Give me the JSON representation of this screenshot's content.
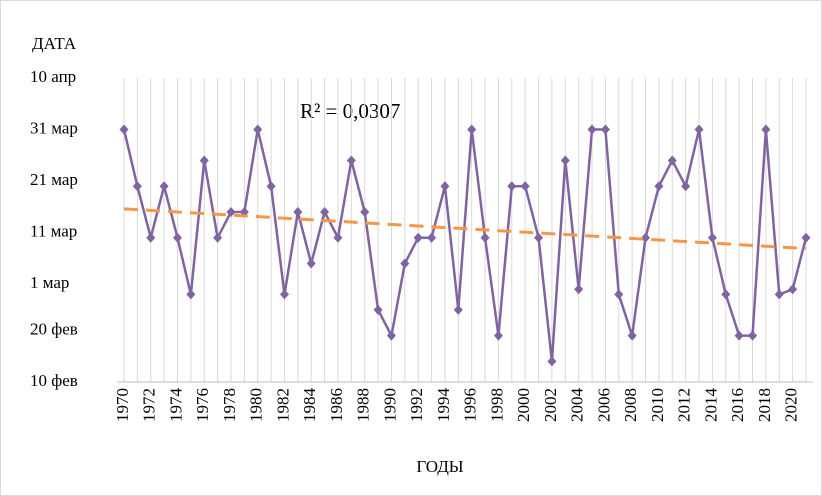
{
  "chart_data": {
    "type": "line",
    "ylabel": "ДАТА",
    "xlabel": "ГОДЫ",
    "annotation": "R² = 0,0307",
    "x": [
      1970,
      1971,
      1972,
      1973,
      1974,
      1975,
      1976,
      1977,
      1978,
      1979,
      1980,
      1981,
      1982,
      1983,
      1984,
      1985,
      1986,
      1987,
      1988,
      1989,
      1990,
      1991,
      1992,
      1993,
      1994,
      1995,
      1996,
      1997,
      1998,
      1999,
      2000,
      2001,
      2002,
      2003,
      2004,
      2005,
      2006,
      2007,
      2008,
      2009,
      2010,
      2011,
      2012,
      2013,
      2014,
      2015,
      2016,
      2017,
      2018,
      2019,
      2020,
      2021
    ],
    "series": [
      {
        "color": "#8064a2",
        "values": [
          90,
          79,
          69,
          79,
          69,
          58,
          84,
          69,
          74,
          74,
          90,
          79,
          58,
          74,
          64,
          74,
          69,
          84,
          74,
          55,
          50,
          64,
          69,
          69,
          79,
          55,
          90,
          69,
          50,
          79,
          79,
          69,
          45,
          84,
          59,
          90,
          90,
          58,
          50,
          69,
          79,
          84,
          79,
          90,
          69,
          58,
          50,
          50,
          90,
          58,
          59,
          69
        ]
      }
    ],
    "trend": {
      "color": "#f79646",
      "x": [
        1970,
        2021
      ],
      "values": [
        74.6,
        66.9
      ]
    },
    "xlim": [
      1970,
      2021
    ],
    "xticks": [
      1970,
      1972,
      1974,
      1976,
      1978,
      1980,
      1982,
      1984,
      1986,
      1988,
      1990,
      1992,
      1994,
      1996,
      1998,
      2000,
      2002,
      2004,
      2006,
      2008,
      2010,
      2012,
      2014,
      2016,
      2018,
      2020
    ],
    "ylim": [
      41,
      100
    ],
    "yticks": [
      {
        "value": 41,
        "label": "10 фев"
      },
      {
        "value": 51,
        "label": "20 фев"
      },
      {
        "value": 60,
        "label": "1 мар"
      },
      {
        "value": 70,
        "label": "11 мар"
      },
      {
        "value": 80,
        "label": "21 мар"
      },
      {
        "value": 90,
        "label": "31 мар"
      },
      {
        "value": 100,
        "label": "10 апр"
      }
    ],
    "grid": "x"
  }
}
